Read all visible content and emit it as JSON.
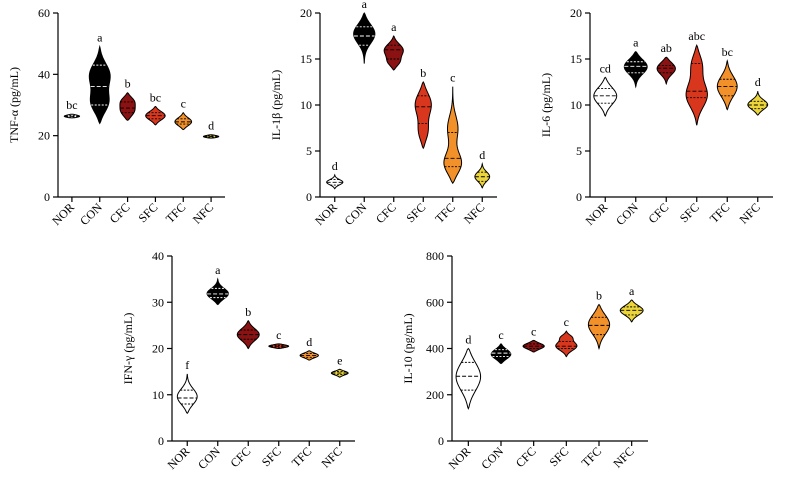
{
  "chart_data": [
    {
      "type": "violin",
      "ylabel": "TNF-α (pg/mL)",
      "ylim": [
        0,
        60
      ],
      "yticks": [
        0,
        20,
        40,
        60
      ],
      "categories": [
        "NOR",
        "CON",
        "CFC",
        "SFC",
        "TFC",
        "NFC"
      ],
      "letters": [
        "bc",
        "a",
        "b",
        "bc",
        "c",
        "d"
      ],
      "colors": [
        "#ffffff",
        "#000000",
        "#8b1212",
        "#d8371e",
        "#f2902a",
        "#ecd53a"
      ],
      "violins": [
        {
          "min": 25.8,
          "max": 27.0,
          "median": 26.3,
          "q1": 26.1,
          "q3": 26.6,
          "modes": [
            [
              26.3,
              1.0,
              0.5
            ]
          ],
          "hw": 0.55
        },
        {
          "min": 24.0,
          "max": 49.0,
          "median": 36.0,
          "q1": 30.0,
          "q3": 43.0,
          "modes": [
            [
              30.5,
              0.9,
              3.5
            ],
            [
              40.0,
              1.0,
              4.0
            ]
          ],
          "hw": 0.75
        },
        {
          "min": 25.0,
          "max": 34.0,
          "median": 29.0,
          "q1": 27.5,
          "q3": 31.0,
          "modes": [
            [
              28.0,
              1.0,
              2.0
            ],
            [
              31.5,
              0.8,
              1.5
            ]
          ],
          "hw": 0.55
        },
        {
          "min": 23.5,
          "max": 29.5,
          "median": 26.5,
          "q1": 25.5,
          "q3": 27.5,
          "modes": [
            [
              26.5,
              1.0,
              1.5
            ]
          ],
          "hw": 0.7
        },
        {
          "min": 22.0,
          "max": 27.5,
          "median": 24.5,
          "q1": 23.8,
          "q3": 25.5,
          "modes": [
            [
              24.5,
              1.0,
              1.4
            ]
          ],
          "hw": 0.6
        },
        {
          "min": 19.2,
          "max": 20.3,
          "median": 19.7,
          "q1": 19.5,
          "q3": 19.9,
          "modes": [
            [
              19.7,
              1.0,
              0.45
            ]
          ],
          "hw": 0.55
        }
      ]
    },
    {
      "type": "violin",
      "ylabel": "IL-1β (pg/mL)",
      "ylim": [
        0,
        20
      ],
      "yticks": [
        0,
        5,
        10,
        15,
        20
      ],
      "categories": [
        "NOR",
        "CON",
        "CFC",
        "SFC",
        "TFC",
        "NFC"
      ],
      "letters": [
        "d",
        "a",
        "a",
        "b",
        "c",
        "d"
      ],
      "colors": [
        "#ffffff",
        "#000000",
        "#8b1212",
        "#d8371e",
        "#f2902a",
        "#ecd53a"
      ],
      "violins": [
        {
          "min": 0.9,
          "max": 2.4,
          "median": 1.6,
          "q1": 1.3,
          "q3": 1.9,
          "modes": [
            [
              1.6,
              1.0,
              0.3
            ]
          ],
          "hw": 0.55
        },
        {
          "min": 14.5,
          "max": 20.0,
          "median": 17.5,
          "q1": 16.5,
          "q3": 18.5,
          "modes": [
            [
              17.8,
              1.0,
              1.1
            ]
          ],
          "hw": 0.72
        },
        {
          "min": 13.8,
          "max": 17.5,
          "median": 16.0,
          "q1": 15.0,
          "q3": 16.5,
          "modes": [
            [
              16.0,
              1.0,
              0.7
            ],
            [
              14.6,
              0.6,
              0.5
            ]
          ],
          "hw": 0.65
        },
        {
          "min": 5.3,
          "max": 12.5,
          "median": 9.8,
          "q1": 8.0,
          "q3": 11.0,
          "modes": [
            [
              10.2,
              1.0,
              1.3
            ],
            [
              7.0,
              0.6,
              1.1
            ]
          ],
          "hw": 0.55
        },
        {
          "min": 1.5,
          "max": 12.0,
          "median": 4.2,
          "q1": 3.3,
          "q3": 7.0,
          "modes": [
            [
              3.5,
              1.0,
              1.2
            ],
            [
              7.5,
              0.5,
              1.4
            ]
          ],
          "hw": 0.6
        },
        {
          "min": 1.0,
          "max": 3.6,
          "median": 2.2,
          "q1": 1.7,
          "q3": 2.7,
          "modes": [
            [
              2.2,
              1.0,
              0.55
            ]
          ],
          "hw": 0.5
        }
      ]
    },
    {
      "type": "violin",
      "ylabel": "IL-6 (pg/mL)",
      "ylim": [
        0,
        20
      ],
      "yticks": [
        0,
        5,
        10,
        15,
        20
      ],
      "categories": [
        "NOR",
        "CON",
        "CFC",
        "SFC",
        "TFC",
        "NFC"
      ],
      "letters": [
        "cd",
        "a",
        "ab",
        "abc",
        "bc",
        "d"
      ],
      "colors": [
        "#ffffff",
        "#000000",
        "#8b1212",
        "#d8371e",
        "#f2902a",
        "#ecd53a"
      ],
      "violins": [
        {
          "min": 8.8,
          "max": 13.0,
          "median": 11.0,
          "q1": 10.2,
          "q3": 11.8,
          "modes": [
            [
              11.0,
              1.0,
              1.0
            ]
          ],
          "hw": 0.75
        },
        {
          "min": 12.0,
          "max": 15.8,
          "median": 14.2,
          "q1": 13.5,
          "q3": 14.7,
          "modes": [
            [
              14.2,
              1.0,
              0.85
            ]
          ],
          "hw": 0.75
        },
        {
          "min": 12.3,
          "max": 15.2,
          "median": 14.0,
          "q1": 13.5,
          "q3": 14.3,
          "modes": [
            [
              14.0,
              1.0,
              0.7
            ]
          ],
          "hw": 0.6
        },
        {
          "min": 7.8,
          "max": 16.5,
          "median": 11.5,
          "q1": 10.8,
          "q3": 14.5,
          "modes": [
            [
              11.0,
              1.0,
              1.4
            ],
            [
              14.5,
              0.55,
              1.2
            ]
          ],
          "hw": 0.7
        },
        {
          "min": 9.5,
          "max": 14.8,
          "median": 12.0,
          "q1": 11.0,
          "q3": 12.8,
          "modes": [
            [
              12.0,
              1.0,
              1.2
            ]
          ],
          "hw": 0.65
        },
        {
          "min": 8.9,
          "max": 11.5,
          "median": 10.0,
          "q1": 9.6,
          "q3": 10.4,
          "modes": [
            [
              10.0,
              1.0,
              0.55
            ]
          ],
          "hw": 0.65
        }
      ]
    },
    {
      "type": "violin",
      "ylabel": "IFN-γ (pg/mL)",
      "ylim": [
        0,
        40
      ],
      "yticks": [
        0,
        10,
        20,
        30,
        40
      ],
      "categories": [
        "NOR",
        "CON",
        "CFC",
        "SFC",
        "TFC",
        "NFC"
      ],
      "letters": [
        "f",
        "a",
        "b",
        "c",
        "d",
        "e"
      ],
      "colors": [
        "#ffffff",
        "#000000",
        "#8b1212",
        "#d8371e",
        "#f2902a",
        "#ecd53a"
      ],
      "violins": [
        {
          "min": 6.0,
          "max": 14.5,
          "median": 9.3,
          "q1": 8.0,
          "q3": 11.0,
          "modes": [
            [
              9.5,
              1.0,
              1.8
            ]
          ],
          "hw": 0.65
        },
        {
          "min": 29.5,
          "max": 35.0,
          "median": 31.8,
          "q1": 31.0,
          "q3": 33.0,
          "modes": [
            [
              31.8,
              1.0,
              1.2
            ]
          ],
          "hw": 0.7
        },
        {
          "min": 20.0,
          "max": 26.0,
          "median": 23.0,
          "q1": 22.0,
          "q3": 24.0,
          "modes": [
            [
              23.0,
              1.0,
              1.4
            ]
          ],
          "hw": 0.72
        },
        {
          "min": 20.0,
          "max": 21.0,
          "median": 20.5,
          "q1": 20.3,
          "q3": 20.7,
          "modes": [
            [
              20.5,
              1.0,
              0.35
            ]
          ],
          "hw": 0.65
        },
        {
          "min": 17.5,
          "max": 19.5,
          "median": 18.5,
          "q1": 18.1,
          "q3": 18.9,
          "modes": [
            [
              18.5,
              1.0,
              0.55
            ]
          ],
          "hw": 0.6
        },
        {
          "min": 13.8,
          "max": 15.5,
          "median": 14.7,
          "q1": 14.4,
          "q3": 15.0,
          "modes": [
            [
              14.7,
              1.0,
              0.45
            ]
          ],
          "hw": 0.55
        }
      ]
    },
    {
      "type": "violin",
      "ylabel": "IL-10 (pg/mL)",
      "ylim": [
        0,
        800
      ],
      "yticks": [
        0,
        200,
        400,
        600,
        800
      ],
      "categories": [
        "NOR",
        "CON",
        "CFC",
        "SFC",
        "TFC",
        "NFC"
      ],
      "letters": [
        "d",
        "c",
        "c",
        "c",
        "b",
        "a"
      ],
      "colors": [
        "#ffffff",
        "#000000",
        "#8b1212",
        "#d8371e",
        "#f2902a",
        "#ecd53a"
      ],
      "violins": [
        {
          "min": 140,
          "max": 400,
          "median": 280,
          "q1": 220,
          "q3": 340,
          "modes": [
            [
              280,
              1.0,
              65
            ]
          ],
          "hw": 0.75
        },
        {
          "min": 335,
          "max": 420,
          "median": 380,
          "q1": 365,
          "q3": 395,
          "modes": [
            [
              375,
              1.0,
              22
            ]
          ],
          "hw": 0.6
        },
        {
          "min": 385,
          "max": 435,
          "median": 410,
          "q1": 400,
          "q3": 420,
          "modes": [
            [
              410,
              1.0,
              14
            ]
          ],
          "hw": 0.65
        },
        {
          "min": 365,
          "max": 475,
          "median": 410,
          "q1": 400,
          "q3": 430,
          "modes": [
            [
              410,
              1.0,
              20
            ],
            [
              450,
              0.5,
              12
            ]
          ],
          "hw": 0.65
        },
        {
          "min": 400,
          "max": 590,
          "median": 500,
          "q1": 460,
          "q3": 535,
          "modes": [
            [
              505,
              1.0,
              45
            ]
          ],
          "hw": 0.65
        },
        {
          "min": 515,
          "max": 610,
          "median": 565,
          "q1": 545,
          "q3": 580,
          "modes": [
            [
              565,
              1.0,
              22
            ]
          ],
          "hw": 0.7
        }
      ]
    }
  ]
}
